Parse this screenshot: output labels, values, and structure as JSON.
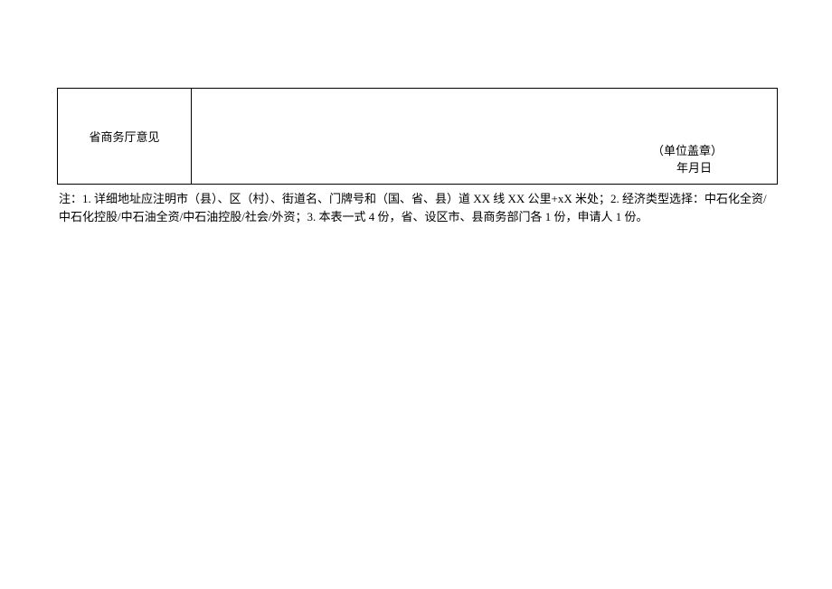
{
  "form": {
    "label": "省商务厅意见",
    "stamp": "（单位盖章）",
    "date": "年月日"
  },
  "notes": "注：1. 详细地址应注明市（县）、区（村）、街道名、门牌号和（国、省、县）道 XX 线 XX 公里+xX 米处；2. 经济类型选择：中石化全资/中石化控股/中石油全资/中石油控股/社会/外资；3. 本表一式 4 份，省、设区市、县商务部门各 1 份，申请人 1 份。",
  "colors": {
    "border": "#000000",
    "background": "#ffffff",
    "text": "#000000"
  },
  "typography": {
    "font_family": "SimSun",
    "font_size": 13,
    "line_height": 1.55
  },
  "layout": {
    "label_cell_width": 148,
    "content_cell_height": 106
  }
}
